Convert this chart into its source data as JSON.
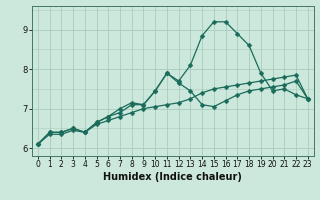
{
  "title": "",
  "xlabel": "Humidex (Indice chaleur)",
  "bg_color": "#cce8dd",
  "grid_color": "#aaccbb",
  "line_color": "#1a6b5a",
  "xlim": [
    -0.5,
    23.5
  ],
  "ylim": [
    5.8,
    9.6
  ],
  "xticks": [
    0,
    1,
    2,
    3,
    4,
    5,
    6,
    7,
    8,
    9,
    10,
    11,
    12,
    13,
    14,
    15,
    16,
    17,
    18,
    19,
    20,
    21,
    22,
    23
  ],
  "yticks": [
    6,
    7,
    8,
    9
  ],
  "series1_x": [
    0,
    1,
    2,
    3,
    4,
    5,
    6,
    7,
    8,
    9,
    10,
    11,
    12,
    13,
    14,
    15,
    16,
    17,
    18,
    19,
    20,
    21,
    22,
    23
  ],
  "series1_y": [
    6.1,
    6.4,
    6.4,
    6.5,
    6.4,
    6.65,
    6.8,
    6.9,
    7.1,
    7.1,
    7.45,
    7.9,
    7.7,
    8.1,
    8.85,
    9.2,
    9.2,
    8.9,
    8.6,
    7.9,
    7.45,
    7.5,
    7.35,
    7.25
  ],
  "series2_x": [
    0,
    1,
    2,
    3,
    4,
    5,
    6,
    7,
    8,
    9,
    10,
    11,
    12,
    13,
    14,
    15,
    16,
    17,
    18,
    19,
    20,
    21,
    22,
    23
  ],
  "series2_y": [
    6.1,
    6.4,
    6.4,
    6.5,
    6.4,
    6.65,
    6.8,
    7.0,
    7.15,
    7.1,
    7.45,
    7.9,
    7.65,
    7.45,
    7.1,
    7.05,
    7.2,
    7.35,
    7.45,
    7.5,
    7.55,
    7.6,
    7.7,
    7.25
  ],
  "series3_x": [
    0,
    1,
    2,
    3,
    4,
    5,
    6,
    7,
    8,
    9,
    10,
    11,
    12,
    13,
    14,
    15,
    16,
    17,
    18,
    19,
    20,
    21,
    22,
    23
  ],
  "series3_y": [
    6.1,
    6.35,
    6.35,
    6.45,
    6.4,
    6.6,
    6.7,
    6.8,
    6.9,
    7.0,
    7.05,
    7.1,
    7.15,
    7.25,
    7.4,
    7.5,
    7.55,
    7.6,
    7.65,
    7.7,
    7.75,
    7.8,
    7.85,
    7.25
  ],
  "marker": "D",
  "marker_size": 2.5,
  "linewidth": 0.9,
  "xlabel_fontsize": 7,
  "tick_labelsize": 5.5
}
